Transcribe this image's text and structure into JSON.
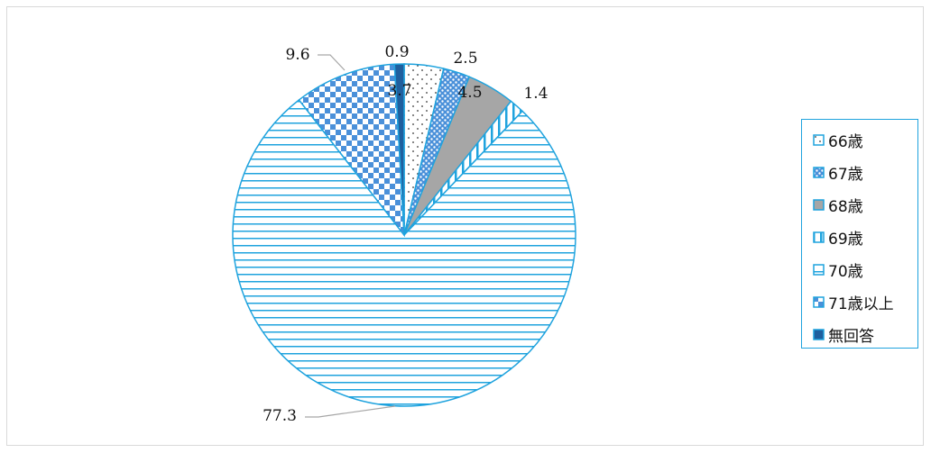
{
  "chart_data": {
    "type": "pie",
    "title": "",
    "unit": "",
    "legend_position": "right",
    "categories": [
      "66歳",
      "67歳",
      "68歳",
      "69歳",
      "70歳",
      "71歳以上",
      "無回答"
    ],
    "values": [
      3.7,
      2.5,
      4.5,
      1.4,
      77.3,
      9.6,
      0.9
    ],
    "data_labels": [
      "3.7",
      "2.5",
      "4.5",
      "1.4",
      "77.3",
      "9.6",
      "0.9"
    ],
    "patterns": [
      "dots-sparse",
      "dots-dense",
      "solid-gray",
      "vertical-lines",
      "horizontal-lines",
      "checker",
      "solid-dark"
    ],
    "colors": {
      "accent": "#1fa3de",
      "gray_fill": "#a6a6a6",
      "dark_fill": "#1f5f9e",
      "check_fill": "#4a90d9",
      "leader": "#a6a6a6",
      "frame": "#d9d9d9"
    }
  }
}
